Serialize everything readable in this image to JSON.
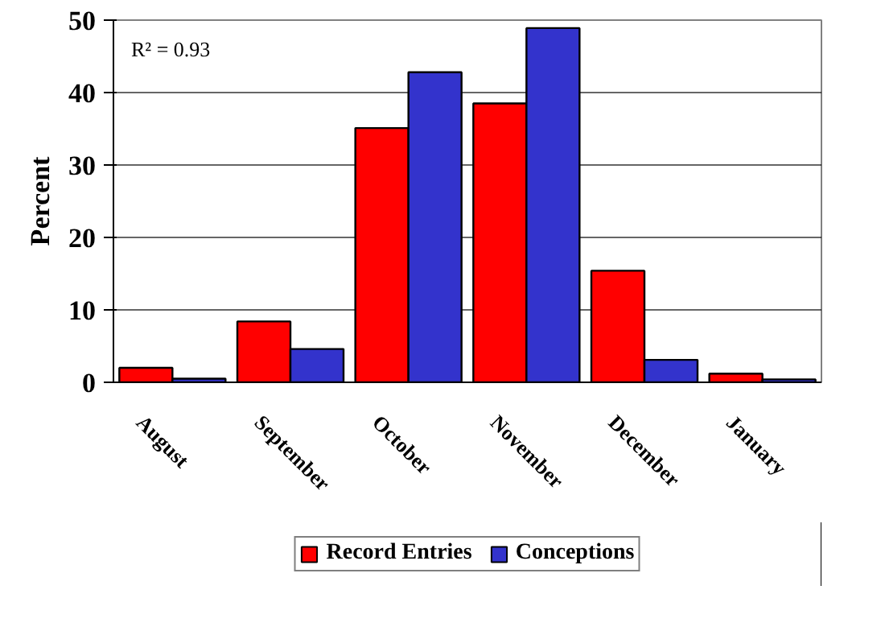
{
  "chart_data": {
    "type": "bar",
    "ylabel": "Percent",
    "categories": [
      "August",
      "September",
      "October",
      "November",
      "December",
      "January"
    ],
    "series": [
      {
        "name": "Record Entries",
        "color": "#ff0000",
        "values": [
          2.0,
          8.4,
          35.1,
          38.5,
          15.4,
          1.2
        ]
      },
      {
        "name": "Conceptions",
        "color": "#3333cc",
        "values": [
          0.5,
          4.6,
          42.8,
          48.9,
          3.1,
          0.4
        ]
      }
    ],
    "ylim": [
      0,
      50
    ],
    "yticks": [
      0,
      10,
      20,
      30,
      40,
      50
    ],
    "grid": "y",
    "legend": "bottom",
    "annotations": [
      "R² = 0.93"
    ]
  }
}
